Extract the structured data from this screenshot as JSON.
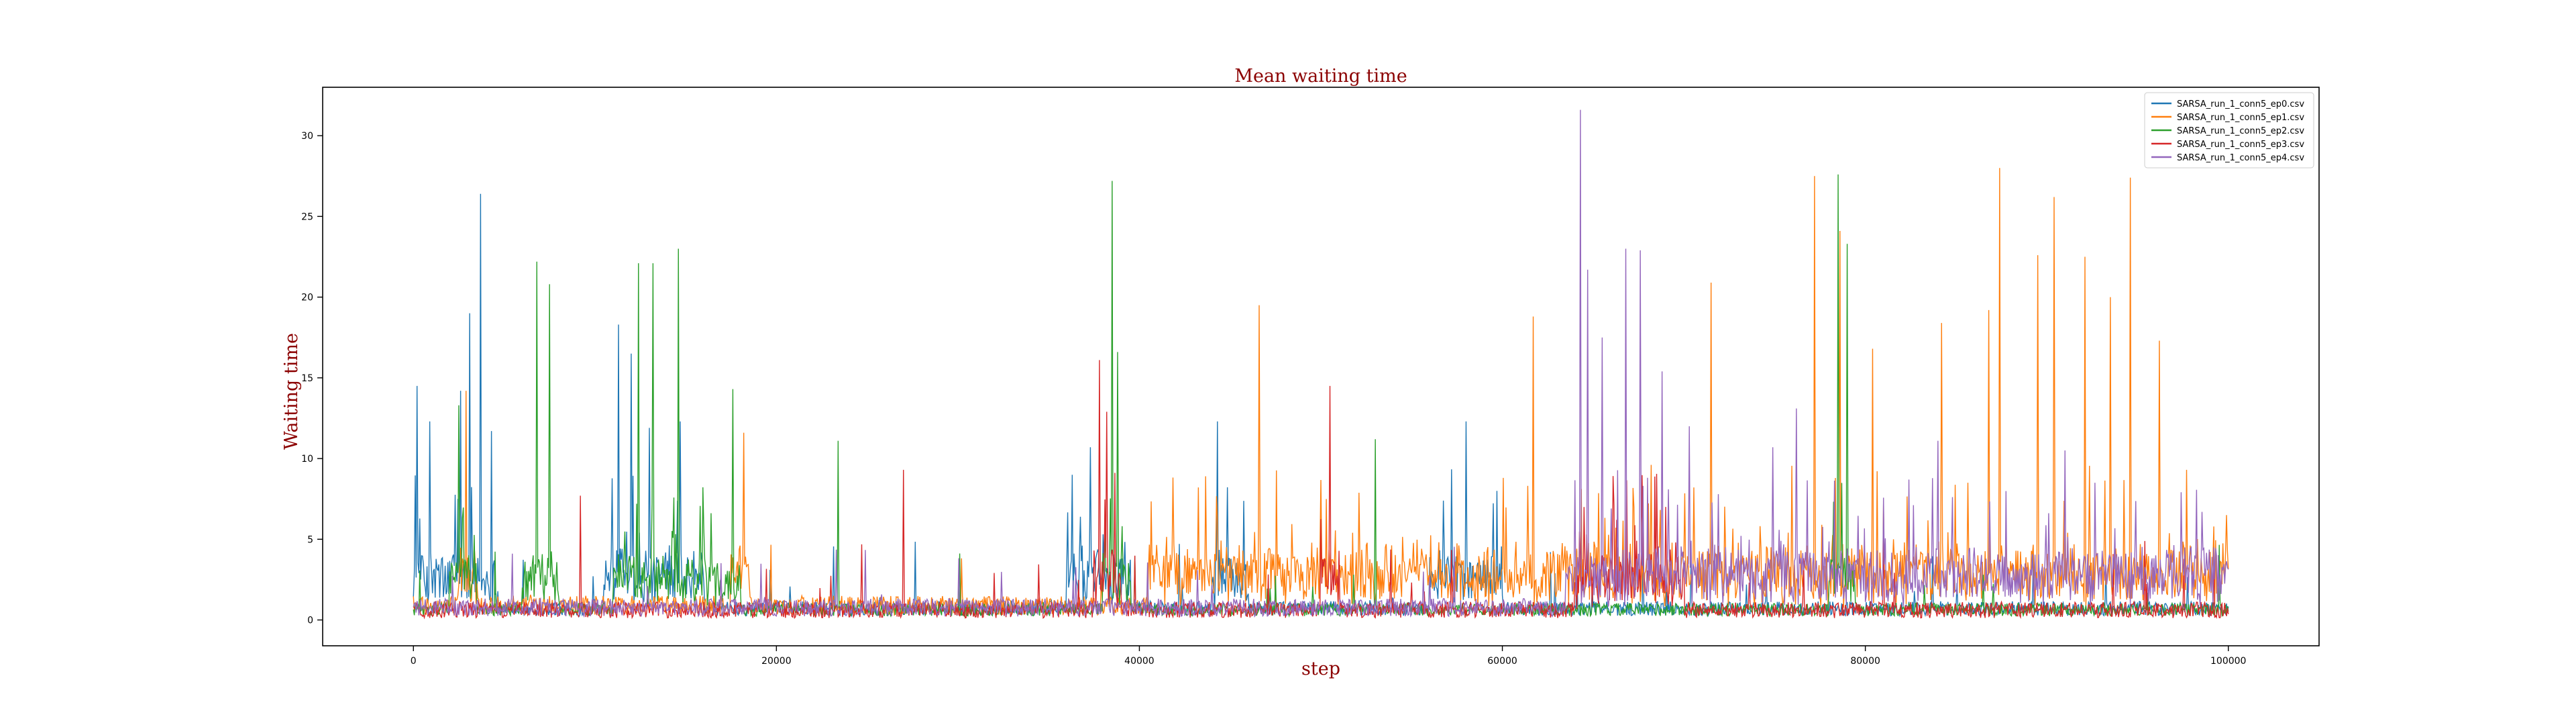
{
  "chart_data": {
    "type": "line",
    "title": "Mean waiting time",
    "xlabel": "step",
    "ylabel": "Waiting time",
    "xlim": [
      -5000,
      105000
    ],
    "ylim": [
      -1.6,
      33
    ],
    "xticks": [
      0,
      20000,
      40000,
      60000,
      80000,
      100000
    ],
    "xtick_labels": [
      "0",
      "20000",
      "40000",
      "60000",
      "80000",
      "100000"
    ],
    "yticks": [
      0,
      5,
      10,
      15,
      20,
      25,
      30
    ],
    "ytick_labels": [
      "0",
      "5",
      "10",
      "15",
      "20",
      "25",
      "30"
    ],
    "grid": false,
    "legend_position": "top-right",
    "title_color": "#8b0000",
    "series": [
      {
        "name": "SARSA_run_1_conn5_ep0.csv",
        "color": "#1f77b4",
        "baseline": 1.3,
        "noise": 0.9,
        "active_ranges": [
          [
            0,
            4500
          ],
          [
            10500,
            16000
          ],
          [
            36000,
            39500
          ],
          [
            44000,
            46000
          ],
          [
            56000,
            60000
          ]
        ],
        "spikes": [
          [
            200,
            14.5
          ],
          [
            900,
            12.3
          ],
          [
            2600,
            14.2
          ],
          [
            3100,
            19
          ],
          [
            3700,
            26.4
          ],
          [
            4300,
            11.7
          ],
          [
            11300,
            18.3
          ],
          [
            12000,
            16.5
          ],
          [
            13000,
            11.9
          ],
          [
            14700,
            12.3
          ],
          [
            37300,
            10.7
          ],
          [
            44300,
            12.3
          ],
          [
            58000,
            12.3
          ]
        ]
      },
      {
        "name": "SARSA_run_1_conn5_ep1.csv",
        "color": "#ff7f0e",
        "baseline": 1.5,
        "noise": 1.2,
        "active_ranges": [
          [
            2500,
            3500
          ],
          [
            17500,
            18500
          ],
          [
            40500,
            100000
          ]
        ],
        "spikes": [
          [
            2900,
            14.2
          ],
          [
            18200,
            11.6
          ],
          [
            46600,
            19.5
          ],
          [
            61700,
            18.8
          ],
          [
            71500,
            20.9
          ],
          [
            77200,
            27.5
          ],
          [
            78600,
            24.1
          ],
          [
            80400,
            16.8
          ],
          [
            84200,
            18.4
          ],
          [
            86800,
            19.2
          ],
          [
            87400,
            28.0
          ],
          [
            89500,
            22.6
          ],
          [
            90400,
            26.2
          ],
          [
            92100,
            22.5
          ],
          [
            93500,
            20.0
          ],
          [
            94600,
            27.4
          ],
          [
            96200,
            17.3
          ],
          [
            97700,
            9.3
          ],
          [
            99900,
            6.5
          ]
        ]
      },
      {
        "name": "SARSA_run_1_conn5_ep2.csv",
        "color": "#2ca02c",
        "baseline": 1.2,
        "noise": 0.8,
        "active_ranges": [
          [
            2000,
            3500
          ],
          [
            6000,
            8000
          ],
          [
            11000,
            18000
          ],
          [
            38000,
            39500
          ],
          [
            78000,
            79500
          ]
        ],
        "spikes": [
          [
            2500,
            13.3
          ],
          [
            6800,
            22.2
          ],
          [
            7500,
            20.8
          ],
          [
            12400,
            22.1
          ],
          [
            13200,
            22.1
          ],
          [
            14600,
            23.0
          ],
          [
            17600,
            14.3
          ],
          [
            23400,
            11.1
          ],
          [
            38500,
            27.2
          ],
          [
            38800,
            16.6
          ],
          [
            53000,
            11.2
          ],
          [
            78500,
            27.6
          ],
          [
            79000,
            23.3
          ]
        ]
      },
      {
        "name": "SARSA_run_1_conn5_ep3.csv",
        "color": "#d62728",
        "baseline": 0.6,
        "noise": 1.0,
        "active_ranges": [
          [
            37500,
            39000
          ],
          [
            50000,
            51000
          ],
          [
            64000,
            70000
          ]
        ],
        "spikes": [
          [
            9200,
            7.7
          ],
          [
            27000,
            9.3
          ],
          [
            37800,
            16.1
          ],
          [
            38200,
            12.9
          ],
          [
            50500,
            14.5
          ],
          [
            64500,
            7.0
          ],
          [
            66300,
            6.2
          ],
          [
            81000,
            5.5
          ]
        ]
      },
      {
        "name": "SARSA_run_1_conn5_ep4.csv",
        "color": "#9467bd",
        "baseline": 1.1,
        "noise": 1.1,
        "active_ranges": [
          [
            63500,
            100000
          ]
        ],
        "spikes": [
          [
            64300,
            31.6
          ],
          [
            64700,
            21.7
          ],
          [
            65500,
            17.5
          ],
          [
            66800,
            23.0
          ],
          [
            67600,
            22.9
          ],
          [
            68800,
            15.4
          ],
          [
            70300,
            12.0
          ],
          [
            74900,
            10.7
          ],
          [
            76200,
            13.1
          ],
          [
            84000,
            11.1
          ],
          [
            91000,
            10.5
          ]
        ]
      }
    ]
  }
}
